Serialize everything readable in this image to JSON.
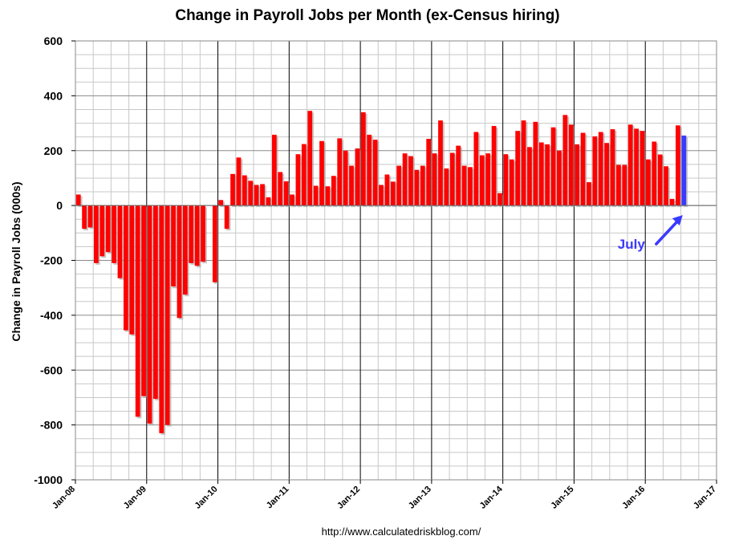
{
  "chart_data": {
    "type": "bar",
    "title": "Change in Payroll Jobs per Month (ex-Census hiring)",
    "xlabel": "",
    "ylabel": "Change in Payroll Jobs (000s)",
    "ylim": [
      -1000,
      600
    ],
    "ytick_step": 200,
    "grid": true,
    "start": "Jan-08",
    "x_tick_labels": [
      "Jan-08",
      "Jan-09",
      "Jan-10",
      "Jan-11",
      "Jan-12",
      "Jan-13",
      "Jan-14",
      "Jan-15",
      "Jan-16",
      "Jan-17"
    ],
    "x_range_months": 108,
    "source": "http://www.calculatedriskblog.com/",
    "annotation": {
      "text": "July",
      "month_index": 102,
      "value": 255
    },
    "colors": {
      "bar": "#ff0000",
      "highlight": "#3a3aff",
      "annotation": "#3a3aff"
    },
    "values": [
      40,
      -85,
      -80,
      -210,
      -185,
      -170,
      -210,
      -265,
      -455,
      -470,
      -770,
      -695,
      -795,
      -705,
      -830,
      -800,
      -295,
      -410,
      -325,
      -210,
      -220,
      -205,
      0,
      -280,
      20,
      -85,
      115,
      175,
      110,
      90,
      75,
      78,
      30,
      258,
      122,
      88,
      40,
      187,
      224,
      345,
      72,
      235,
      70,
      108,
      245,
      200,
      145,
      208,
      340,
      258,
      240,
      75,
      113,
      87,
      145,
      190,
      180,
      130,
      145,
      243,
      190,
      310,
      135,
      192,
      218,
      145,
      140,
      268,
      183,
      190,
      290,
      45,
      187,
      168,
      272,
      310,
      213,
      305,
      230,
      223,
      285,
      200,
      330,
      295,
      223,
      265,
      85,
      252,
      268,
      228,
      278,
      148,
      148,
      295,
      280,
      272,
      168,
      233,
      186,
      143,
      24,
      292,
      255
    ],
    "highlight_index": 102
  }
}
